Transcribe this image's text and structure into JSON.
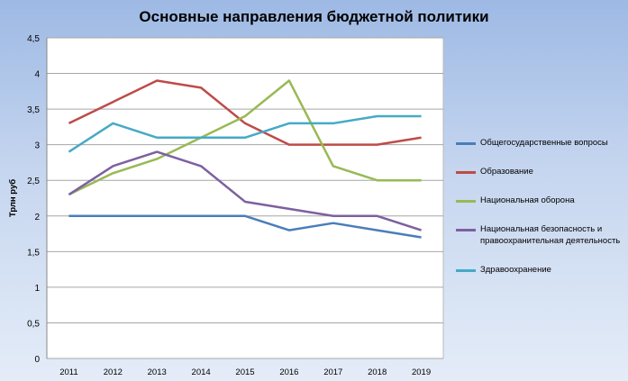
{
  "chart_data": {
    "type": "line",
    "title": "Основные направления бюджетной политики",
    "ylabel": "Трлн руб",
    "xlabel": "",
    "categories": [
      "2011",
      "2012",
      "2013",
      "2014",
      "2015",
      "2016",
      "2017",
      "2018",
      "2019"
    ],
    "ylim": [
      0,
      4.5
    ],
    "yticks": [
      "0",
      "0,5",
      "1",
      "1,5",
      "2",
      "2,5",
      "3",
      "3,5",
      "4",
      "4,5"
    ],
    "grid": true,
    "legend": "right",
    "series": [
      {
        "name": "Общегосударственные вопросы",
        "color": "#4a7ebb",
        "values": [
          2,
          2,
          2,
          2,
          2,
          1.8,
          1.9,
          1.8,
          1.7
        ]
      },
      {
        "name": "Образование",
        "color": "#be4b48",
        "values": [
          3.3,
          3.6,
          3.9,
          3.8,
          3.3,
          3,
          3,
          3,
          3.1
        ]
      },
      {
        "name": "Национальная оборона",
        "color": "#98b954",
        "values": [
          2.3,
          2.6,
          2.8,
          3.1,
          3.4,
          3.9,
          2.7,
          2.5,
          2.5
        ]
      },
      {
        "name": "Национальная безопасность и правоохранительная деятельность",
        "color": "#7d60a0",
        "values": [
          2.3,
          2.7,
          2.9,
          2.7,
          2.2,
          2.1,
          2,
          2,
          1.8
        ]
      },
      {
        "name": "Здравоохранение",
        "color": "#46aac5",
        "values": [
          2.9,
          3.3,
          3.1,
          3.1,
          3.1,
          3.3,
          3.3,
          3.4,
          3.4
        ]
      }
    ]
  }
}
